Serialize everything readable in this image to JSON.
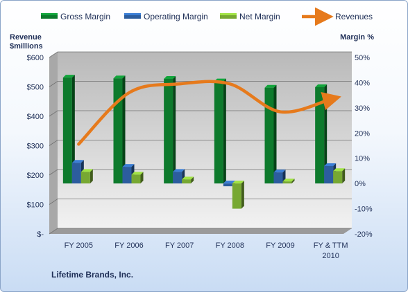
{
  "chart_data": {
    "type": "bar",
    "categories": [
      "FY 2005",
      "FY 2006",
      "FY 2007",
      "FY 2008",
      "FY 2009",
      "FY & TTM 2010"
    ],
    "category_lines": [
      [
        "FY 2005"
      ],
      [
        "FY 2006"
      ],
      [
        "FY 2007"
      ],
      [
        "FY 2008"
      ],
      [
        "FY 2009"
      ],
      [
        "FY & TTM",
        "2010"
      ]
    ],
    "series": [
      {
        "name": "Gross Margin",
        "kind": "bar",
        "axis": "right",
        "color": "#0d7a2c",
        "values": [
          42.0,
          41.7,
          41.5,
          40.5,
          38.0,
          38.2
        ]
      },
      {
        "name": "Operating Margin",
        "kind": "bar",
        "axis": "right",
        "color": "#2c5d9e",
        "values": [
          8.2,
          6.6,
          4.6,
          -1.1,
          4.4,
          6.9
        ]
      },
      {
        "name": "Net Margin",
        "kind": "bar",
        "axis": "right",
        "color": "#77a832",
        "values": [
          4.6,
          3.5,
          1.6,
          -10.0,
          0.8,
          4.9
        ]
      },
      {
        "name": "Revenues",
        "kind": "line",
        "axis": "left",
        "color": "#e67a1c",
        "values": [
          305,
          480,
          510,
          510,
          415,
          458
        ]
      }
    ],
    "ylabel_left_lines": [
      "Revenue",
      "$millions"
    ],
    "ylabel_right": "Margin %",
    "ylim_left": [
      0,
      600
    ],
    "yticks_left": [
      "$-",
      "$100",
      "$200",
      "$300",
      "$400",
      "$500",
      "$600"
    ],
    "ylim_right": [
      -20,
      50
    ],
    "yticks_right": [
      "-20%",
      "-10%",
      "0%",
      "10%",
      "20%",
      "30%",
      "40%",
      "50%"
    ],
    "grid": true,
    "legend_position": "top"
  },
  "footer": {
    "company": "Lifetime Brands,  Inc."
  },
  "colors": {
    "plot_bg_top": "#b9b9b9",
    "plot_bg_bottom": "#f2f2f2",
    "revenue_line": "#e67a1c"
  }
}
